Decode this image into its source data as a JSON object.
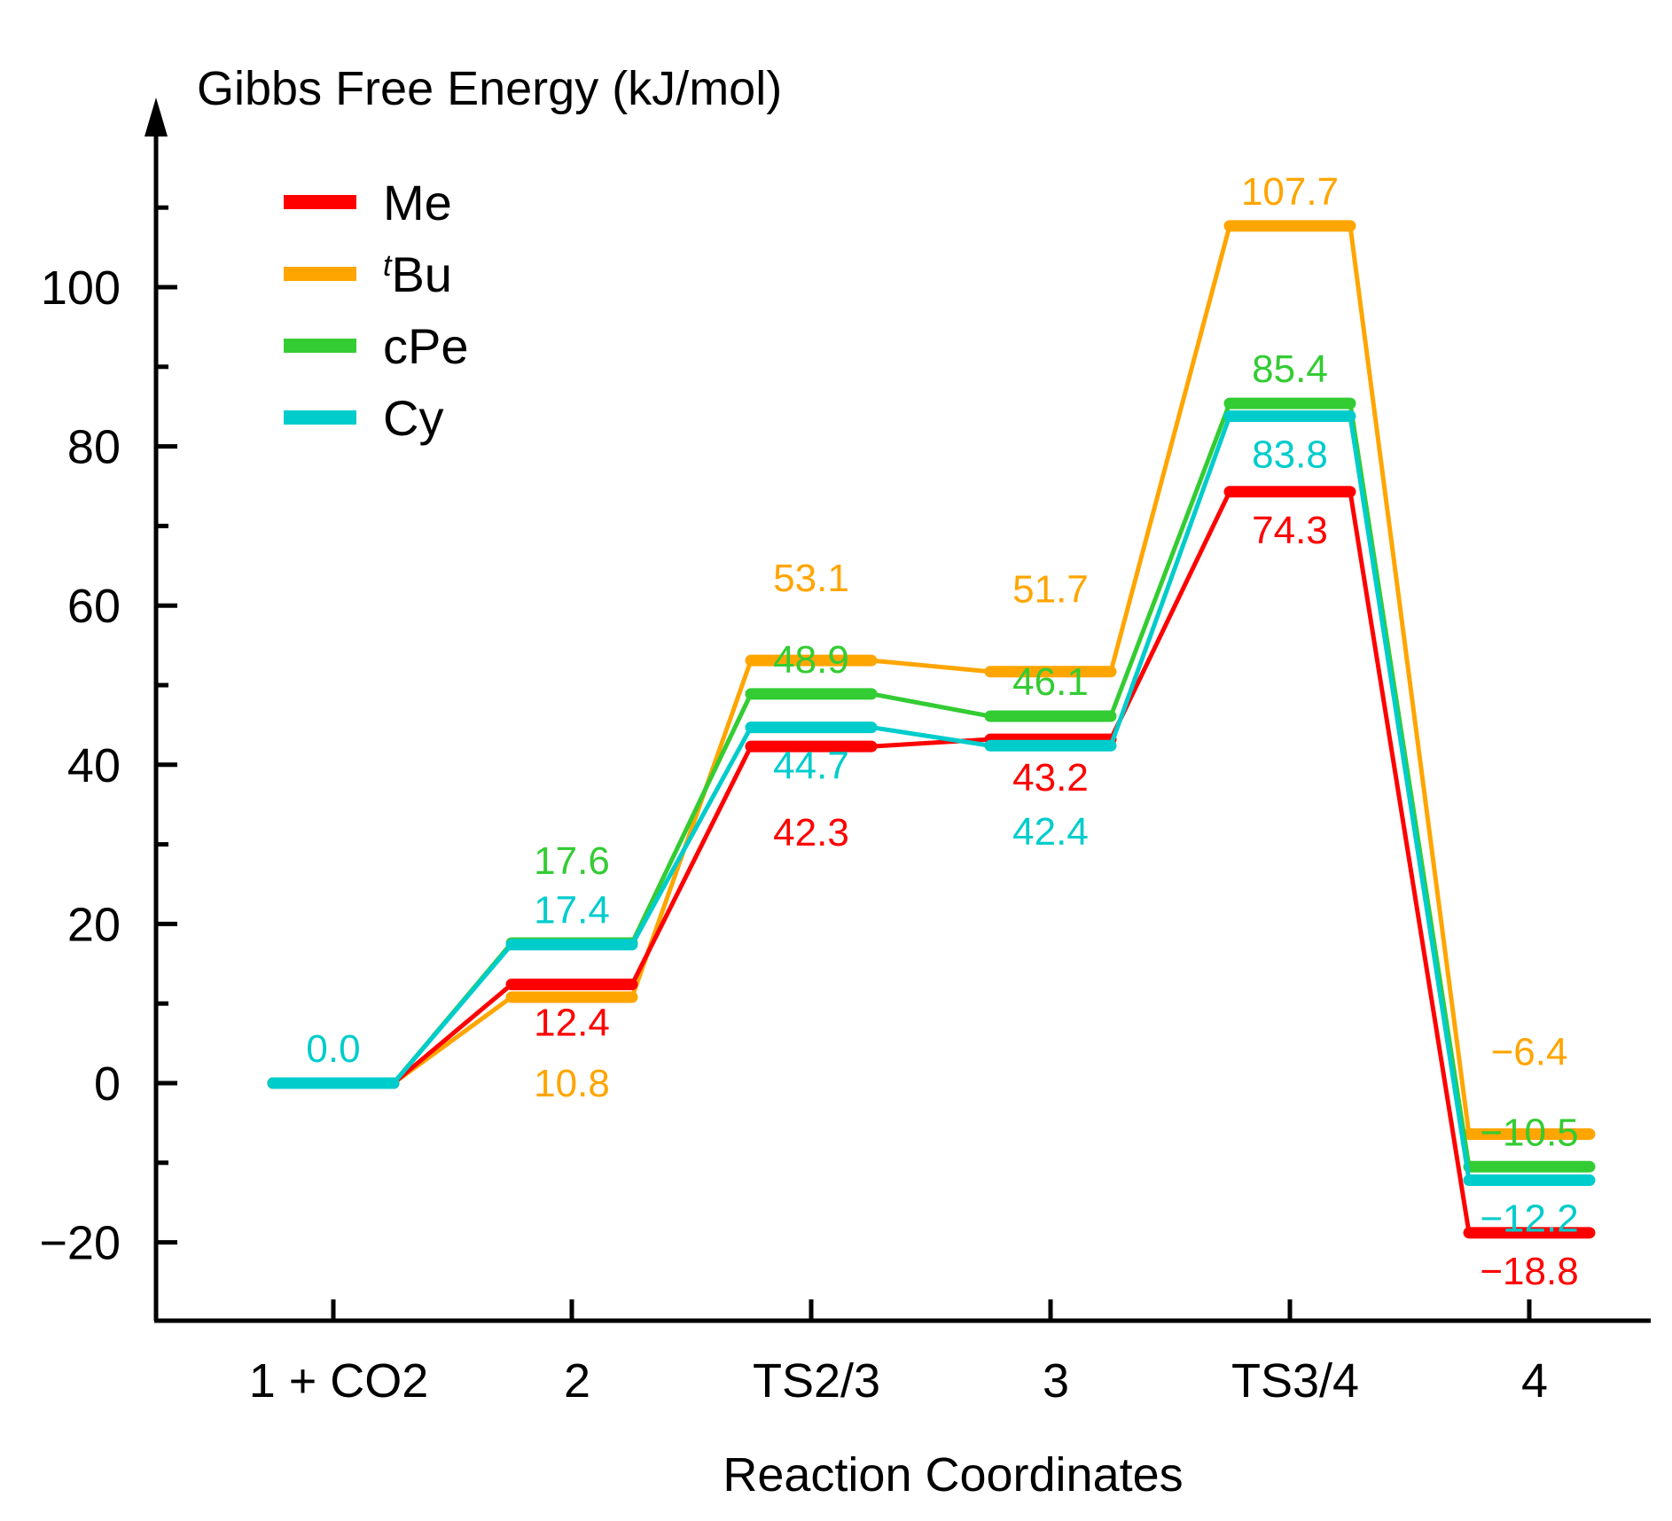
{
  "chart_data": {
    "type": "line",
    "subtype": "energy-profile",
    "ylabel": "Gibbs Free Energy (kJ/mol)",
    "xlabel": "Reaction Coordinates",
    "categories": [
      "1 + CO2",
      "2",
      "TS2/3",
      "3",
      "TS3/4",
      "4"
    ],
    "ylim": [
      -30,
      115
    ],
    "yticks": [
      -20,
      0,
      20,
      40,
      60,
      80,
      100
    ],
    "ytick_labels": [
      "−20",
      "0",
      "20",
      "40",
      "60",
      "80",
      "100"
    ],
    "legend_position": "top-left",
    "series": [
      {
        "name": "Me",
        "color": "#ff0000",
        "values": [
          0.0,
          12.4,
          42.3,
          43.2,
          74.3,
          -18.8
        ]
      },
      {
        "name": "tBu",
        "legend_sup": "t",
        "legend_rest": "Bu",
        "color": "#ffa500",
        "values": [
          0.0,
          10.8,
          53.1,
          51.7,
          107.7,
          -6.4
        ]
      },
      {
        "name": "cPe",
        "color": "#33cc33",
        "values": [
          0.0,
          17.6,
          48.9,
          46.1,
          85.4,
          -10.5
        ]
      },
      {
        "name": "Cy",
        "color": "#00cccc",
        "values": [
          0.0,
          17.4,
          44.7,
          42.4,
          83.8,
          -12.2
        ]
      }
    ],
    "annotations": [
      {
        "text": "0.0",
        "series": "Cy",
        "category": 0,
        "position": "above",
        "order": 0
      },
      {
        "text": "17.6",
        "series": "cPe",
        "category": 1,
        "position": "above",
        "order": 1
      },
      {
        "text": "17.4",
        "series": "Cy",
        "category": 1,
        "position": "above",
        "order": 0
      },
      {
        "text": "12.4",
        "series": "Me",
        "category": 1,
        "position": "below",
        "order": 0
      },
      {
        "text": "10.8",
        "series": "tBu",
        "category": 1,
        "position": "below",
        "order": 1
      },
      {
        "text": "53.1",
        "series": "tBu",
        "category": 2,
        "position": "above",
        "order": 1
      },
      {
        "text": "48.9",
        "series": "cPe",
        "category": 2,
        "position": "above",
        "order": 0
      },
      {
        "text": "44.7",
        "series": "Cy",
        "category": 2,
        "position": "below",
        "order": 0
      },
      {
        "text": "42.3",
        "series": "Me",
        "category": 2,
        "position": "below",
        "order": 1
      },
      {
        "text": "51.7",
        "series": "tBu",
        "category": 3,
        "position": "above",
        "order": 1
      },
      {
        "text": "46.1",
        "series": "cPe",
        "category": 3,
        "position": "above",
        "order": 0
      },
      {
        "text": "43.2",
        "series": "Me",
        "category": 3,
        "position": "below",
        "order": 0
      },
      {
        "text": "42.4",
        "series": "Cy",
        "category": 3,
        "position": "below",
        "order": 1
      },
      {
        "text": "107.7",
        "series": "tBu",
        "category": 4,
        "position": "above",
        "order": 0
      },
      {
        "text": "85.4",
        "series": "cPe",
        "category": 4,
        "position": "above",
        "order": 0
      },
      {
        "text": "83.8",
        "series": "Cy",
        "category": 4,
        "position": "below",
        "order": 0
      },
      {
        "text": "74.3",
        "series": "Me",
        "category": 4,
        "position": "below",
        "order": 0
      },
      {
        "text": "−6.4",
        "series": "tBu",
        "category": 5,
        "position": "above",
        "order": 1
      },
      {
        "text": "−10.5",
        "series": "cPe",
        "category": 5,
        "position": "above",
        "order": 0
      },
      {
        "text": "−12.2",
        "series": "Cy",
        "category": 5,
        "position": "below",
        "order": 0
      },
      {
        "text": "−18.8",
        "series": "Me",
        "category": 5,
        "position": "below",
        "order": 0
      }
    ]
  }
}
